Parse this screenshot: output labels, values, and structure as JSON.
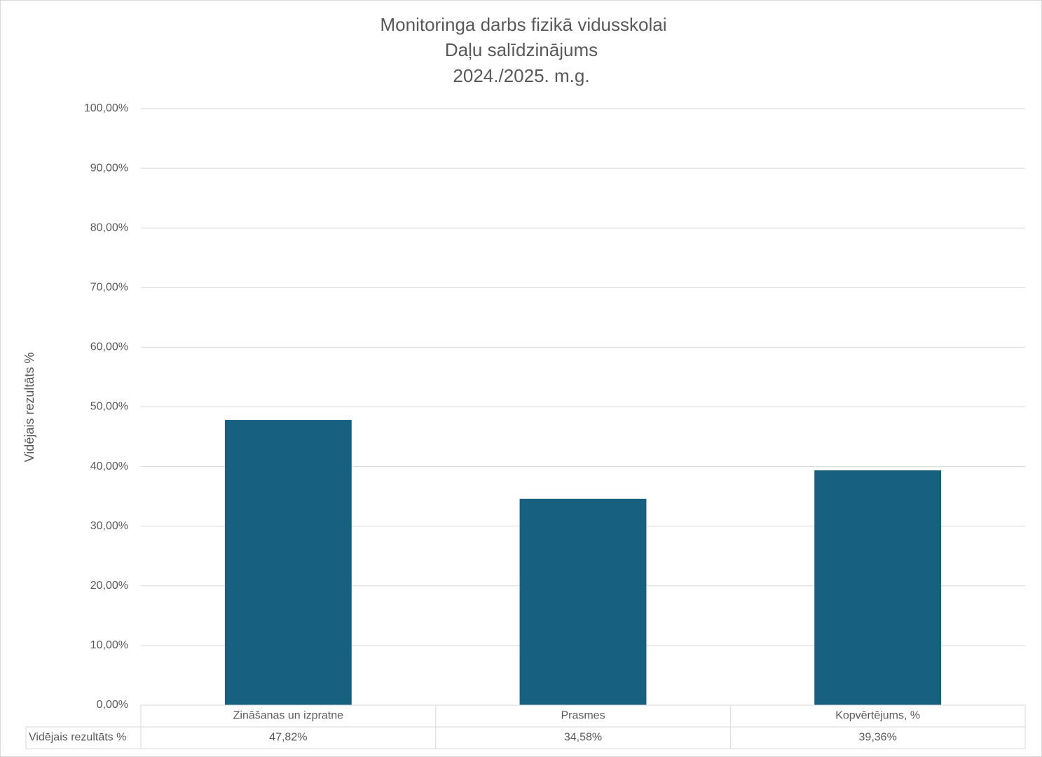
{
  "chart_data": {
    "type": "bar",
    "title": [
      "Monitoringa darbs fizikā vidusskolai",
      "Daļu salīdzinājums",
      "2024./2025. m.g."
    ],
    "ylabel": "Vidējais rezultāts %",
    "categories": [
      "Zināšanas un izpratne",
      "Prasmes",
      "Kopvērtējums, %"
    ],
    "series": [
      {
        "name": "Vidējais rezultāts %",
        "color": "#17607f",
        "values": [
          47.82,
          34.58,
          39.36
        ],
        "value_labels": [
          "47,82%",
          "34,58%",
          "39,36%"
        ]
      }
    ],
    "ylim": [
      0,
      100
    ],
    "yticks": [
      {
        "value": 0,
        "label": "0,00%"
      },
      {
        "value": 10,
        "label": "10,00%"
      },
      {
        "value": 20,
        "label": "20,00%"
      },
      {
        "value": 30,
        "label": "30,00%"
      },
      {
        "value": 40,
        "label": "40,00%"
      },
      {
        "value": 50,
        "label": "50,00%"
      },
      {
        "value": 60,
        "label": "60,00%"
      },
      {
        "value": 70,
        "label": "70,00%"
      },
      {
        "value": 80,
        "label": "80,00%"
      },
      {
        "value": 90,
        "label": "90,00%"
      },
      {
        "value": 100,
        "label": "100,00%"
      }
    ],
    "grid": true
  }
}
